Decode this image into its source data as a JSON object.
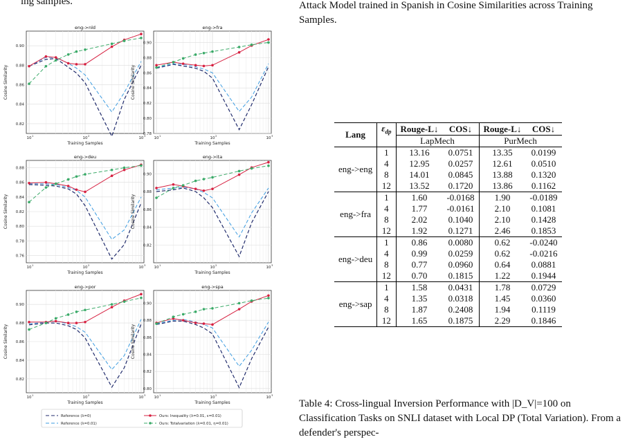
{
  "page": {
    "top_left_fragment": "ing samples.",
    "caption_top": "Attack Model trained in Spanish in Cosine Similarities across Training Samples.",
    "caption_bottom": "Table 4: Cross-lingual Inversion Performance with |D_V|=100 on Classification Tasks on SNLI dataset with Local DP (Total Variation). From a defender's perspec-"
  },
  "legend": {
    "items": [
      {
        "label": "Reference (λ=0)",
        "color": "#1f2a6b",
        "dash": "5,3"
      },
      {
        "label": "Reference (λ=0.01)",
        "color": "#3b9be0",
        "dash": "5,3"
      },
      {
        "label": "Ours: Inequality (λ=0.01, ε=0.01)",
        "color": "#d62040",
        "dash": ""
      },
      {
        "label": "Ours: Totalvariation (λ=0.01, η=0.01)",
        "color": "#3aaa68",
        "dash": "5,3"
      }
    ]
  },
  "chart_data": [
    {
      "type": "line",
      "title": "eng->nld",
      "xlabel": "Training Samples",
      "ylabel": "Cosine Similarity",
      "x": [
        10,
        20,
        30,
        50,
        70,
        100,
        300,
        500,
        1000
      ],
      "ylim": [
        0.81,
        0.915
      ],
      "yticks": [
        0.82,
        0.84,
        0.86,
        0.88,
        0.9
      ],
      "xscale": "log",
      "series": [
        {
          "name": "Reference (λ=0)",
          "values": [
            0.879,
            0.886,
            0.887,
            0.878,
            0.872,
            0.862,
            0.807,
            0.845,
            0.88
          ]
        },
        {
          "name": "Reference (λ=0.01)",
          "values": [
            0.879,
            0.888,
            0.888,
            0.882,
            0.877,
            0.87,
            0.832,
            0.852,
            0.884
          ]
        },
        {
          "name": "Ours: Inequality (λ=0.01, ε=0.01)",
          "values": [
            0.879,
            0.889,
            0.888,
            0.882,
            0.881,
            0.881,
            0.899,
            0.906,
            0.912
          ]
        },
        {
          "name": "Ours: Totalvariation (λ=0.01, η=0.01)",
          "values": [
            0.861,
            0.879,
            0.885,
            0.891,
            0.894,
            0.896,
            0.902,
            0.905,
            0.908
          ]
        }
      ]
    },
    {
      "type": "line",
      "title": "eng->fra",
      "xlabel": "Training Samples",
      "ylabel": "Cosine Similarity",
      "x": [
        10,
        20,
        30,
        50,
        70,
        100,
        300,
        500,
        1000
      ],
      "ylim": [
        0.78,
        0.915
      ],
      "yticks": [
        0.78,
        0.8,
        0.82,
        0.84,
        0.86,
        0.88,
        0.9
      ],
      "xscale": "log",
      "series": [
        {
          "name": "Reference (λ=0)",
          "values": [
            0.866,
            0.871,
            0.869,
            0.866,
            0.862,
            0.853,
            0.785,
            0.818,
            0.868
          ]
        },
        {
          "name": "Reference (λ=0.01)",
          "values": [
            0.867,
            0.872,
            0.871,
            0.868,
            0.865,
            0.86,
            0.809,
            0.828,
            0.872
          ]
        },
        {
          "name": "Ours: Inequality (λ=0.01, ε=0.01)",
          "values": [
            0.87,
            0.874,
            0.872,
            0.87,
            0.869,
            0.87,
            0.887,
            0.896,
            0.904
          ]
        },
        {
          "name": "Ours: Totalvariation (λ=0.01, η=0.01)",
          "values": [
            0.867,
            0.874,
            0.879,
            0.884,
            0.886,
            0.888,
            0.894,
            0.897,
            0.9
          ]
        }
      ]
    },
    {
      "type": "line",
      "title": "eng->deu",
      "xlabel": "Training Samples",
      "ylabel": "Cosine Similarity",
      "x": [
        10,
        20,
        30,
        50,
        70,
        100,
        300,
        500,
        1000
      ],
      "ylim": [
        0.75,
        0.89
      ],
      "yticks": [
        0.76,
        0.78,
        0.8,
        0.82,
        0.84,
        0.86,
        0.88
      ],
      "xscale": "log",
      "series": [
        {
          "name": "Reference (λ=0)",
          "values": [
            0.857,
            0.856,
            0.855,
            0.851,
            0.844,
            0.828,
            0.755,
            0.775,
            0.832
          ]
        },
        {
          "name": "Reference (λ=0.01)",
          "values": [
            0.858,
            0.858,
            0.857,
            0.853,
            0.849,
            0.84,
            0.782,
            0.795,
            0.84
          ]
        },
        {
          "name": "Ours: Inequality (λ=0.01, ε=0.01)",
          "values": [
            0.859,
            0.86,
            0.858,
            0.855,
            0.85,
            0.847,
            0.869,
            0.877,
            0.884
          ]
        },
        {
          "name": "Ours: Totalvariation (λ=0.01, η=0.01)",
          "values": [
            0.833,
            0.853,
            0.858,
            0.864,
            0.868,
            0.871,
            0.877,
            0.88,
            0.883
          ]
        }
      ]
    },
    {
      "type": "line",
      "title": "eng->ita",
      "xlabel": "Training Samples",
      "ylabel": "Cosine Similarity",
      "x": [
        10,
        20,
        30,
        50,
        70,
        100,
        300,
        500,
        1000
      ],
      "ylim": [
        0.8,
        0.915
      ],
      "yticks": [
        0.82,
        0.84,
        0.86,
        0.88,
        0.9
      ],
      "xscale": "log",
      "series": [
        {
          "name": "Reference (λ=0)",
          "values": [
            0.88,
            0.882,
            0.884,
            0.88,
            0.873,
            0.862,
            0.807,
            0.845,
            0.88
          ]
        },
        {
          "name": "Reference (λ=0.01)",
          "values": [
            0.882,
            0.884,
            0.885,
            0.883,
            0.879,
            0.873,
            0.829,
            0.856,
            0.884
          ]
        },
        {
          "name": "Ours: Inequality (λ=0.01, ε=0.01)",
          "values": [
            0.884,
            0.888,
            0.886,
            0.883,
            0.881,
            0.883,
            0.899,
            0.907,
            0.913
          ]
        },
        {
          "name": "Ours: Totalvariation (λ=0.01, η=0.01)",
          "values": [
            0.873,
            0.884,
            0.887,
            0.892,
            0.894,
            0.896,
            0.903,
            0.906,
            0.909
          ]
        }
      ]
    },
    {
      "type": "line",
      "title": "eng->por",
      "xlabel": "Training Samples",
      "ylabel": "Cosine Similarity",
      "x": [
        10,
        20,
        30,
        50,
        70,
        100,
        300,
        500,
        1000
      ],
      "ylim": [
        0.805,
        0.915
      ],
      "yticks": [
        0.82,
        0.84,
        0.86,
        0.88,
        0.9
      ],
      "xscale": "log",
      "series": [
        {
          "name": "Reference (λ=0)",
          "values": [
            0.878,
            0.88,
            0.88,
            0.877,
            0.873,
            0.864,
            0.811,
            0.832,
            0.879
          ]
        },
        {
          "name": "Reference (λ=0.01)",
          "values": [
            0.879,
            0.881,
            0.882,
            0.879,
            0.876,
            0.87,
            0.83,
            0.845,
            0.884
          ]
        },
        {
          "name": "Ours: Inequality (λ=0.01, ε=0.01)",
          "values": [
            0.881,
            0.881,
            0.882,
            0.88,
            0.88,
            0.881,
            0.897,
            0.904,
            0.911
          ]
        },
        {
          "name": "Ours: Totalvariation (λ=0.01, η=0.01)",
          "values": [
            0.873,
            0.88,
            0.885,
            0.889,
            0.892,
            0.894,
            0.9,
            0.903,
            0.907
          ]
        }
      ]
    },
    {
      "type": "line",
      "title": "eng->spa",
      "xlabel": "Training Samples",
      "ylabel": "Cosine Similarity",
      "x": [
        10,
        20,
        30,
        50,
        70,
        100,
        300,
        500,
        1000
      ],
      "ylim": [
        0.795,
        0.915
      ],
      "yticks": [
        0.8,
        0.82,
        0.84,
        0.86,
        0.88,
        0.9
      ],
      "xscale": "log",
      "series": [
        {
          "name": "Reference (λ=0)",
          "values": [
            0.875,
            0.879,
            0.879,
            0.875,
            0.871,
            0.864,
            0.801,
            0.835,
            0.872
          ]
        },
        {
          "name": "Reference (λ=0.01)",
          "values": [
            0.876,
            0.88,
            0.881,
            0.878,
            0.875,
            0.871,
            0.826,
            0.845,
            0.878
          ]
        },
        {
          "name": "Ours: Inequality (λ=0.01, ε=0.01)",
          "values": [
            0.877,
            0.882,
            0.88,
            0.877,
            0.876,
            0.875,
            0.893,
            0.902,
            0.909
          ]
        },
        {
          "name": "Ours: Totalvariation (λ=0.01, η=0.01)",
          "values": [
            0.876,
            0.884,
            0.887,
            0.89,
            0.893,
            0.894,
            0.9,
            0.903,
            0.906
          ]
        }
      ]
    }
  ],
  "table": {
    "headers": {
      "lang": "Lang",
      "eps": "ε_dp",
      "rouge": "Rouge-L↓",
      "cos": "COS↓",
      "lap": "LapMech",
      "pur": "PurMech"
    },
    "groups": [
      {
        "lang": "eng->eng",
        "rows": [
          [
            "1",
            "13.16",
            "0.0751",
            "13.35",
            "0.0199"
          ],
          [
            "4",
            "12.95",
            "0.0257",
            "12.61",
            "0.0510"
          ],
          [
            "8",
            "14.01",
            "0.0845",
            "13.88",
            "0.1320"
          ],
          [
            "12",
            "13.52",
            "0.1720",
            "13.86",
            "0.1162"
          ]
        ]
      },
      {
        "lang": "eng->fra",
        "rows": [
          [
            "1",
            "1.60",
            "-0.0168",
            "1.90",
            "-0.0189"
          ],
          [
            "4",
            "1.77",
            "-0.0161",
            "2.10",
            "0.1081"
          ],
          [
            "8",
            "2.02",
            "0.1040",
            "2.10",
            "0.1428"
          ],
          [
            "12",
            "1.92",
            "0.1271",
            "2.46",
            "0.1853"
          ]
        ]
      },
      {
        "lang": "eng->deu",
        "rows": [
          [
            "1",
            "0.86",
            "0.0080",
            "0.62",
            "-0.0240"
          ],
          [
            "4",
            "0.99",
            "0.0259",
            "0.62",
            "-0.0216"
          ],
          [
            "8",
            "0.77",
            "0.0960",
            "0.64",
            "0.0881"
          ],
          [
            "12",
            "0.70",
            "0.1815",
            "1.22",
            "0.1944"
          ]
        ]
      },
      {
        "lang": "eng->sap",
        "rows": [
          [
            "1",
            "1.58",
            "0.0431",
            "1.78",
            "0.0729"
          ],
          [
            "4",
            "1.35",
            "0.0318",
            "1.45",
            "0.0360"
          ],
          [
            "8",
            "1.87",
            "0.2408",
            "1.94",
            "0.1119"
          ],
          [
            "12",
            "1.65",
            "0.1875",
            "2.29",
            "0.1846"
          ]
        ]
      }
    ]
  }
}
